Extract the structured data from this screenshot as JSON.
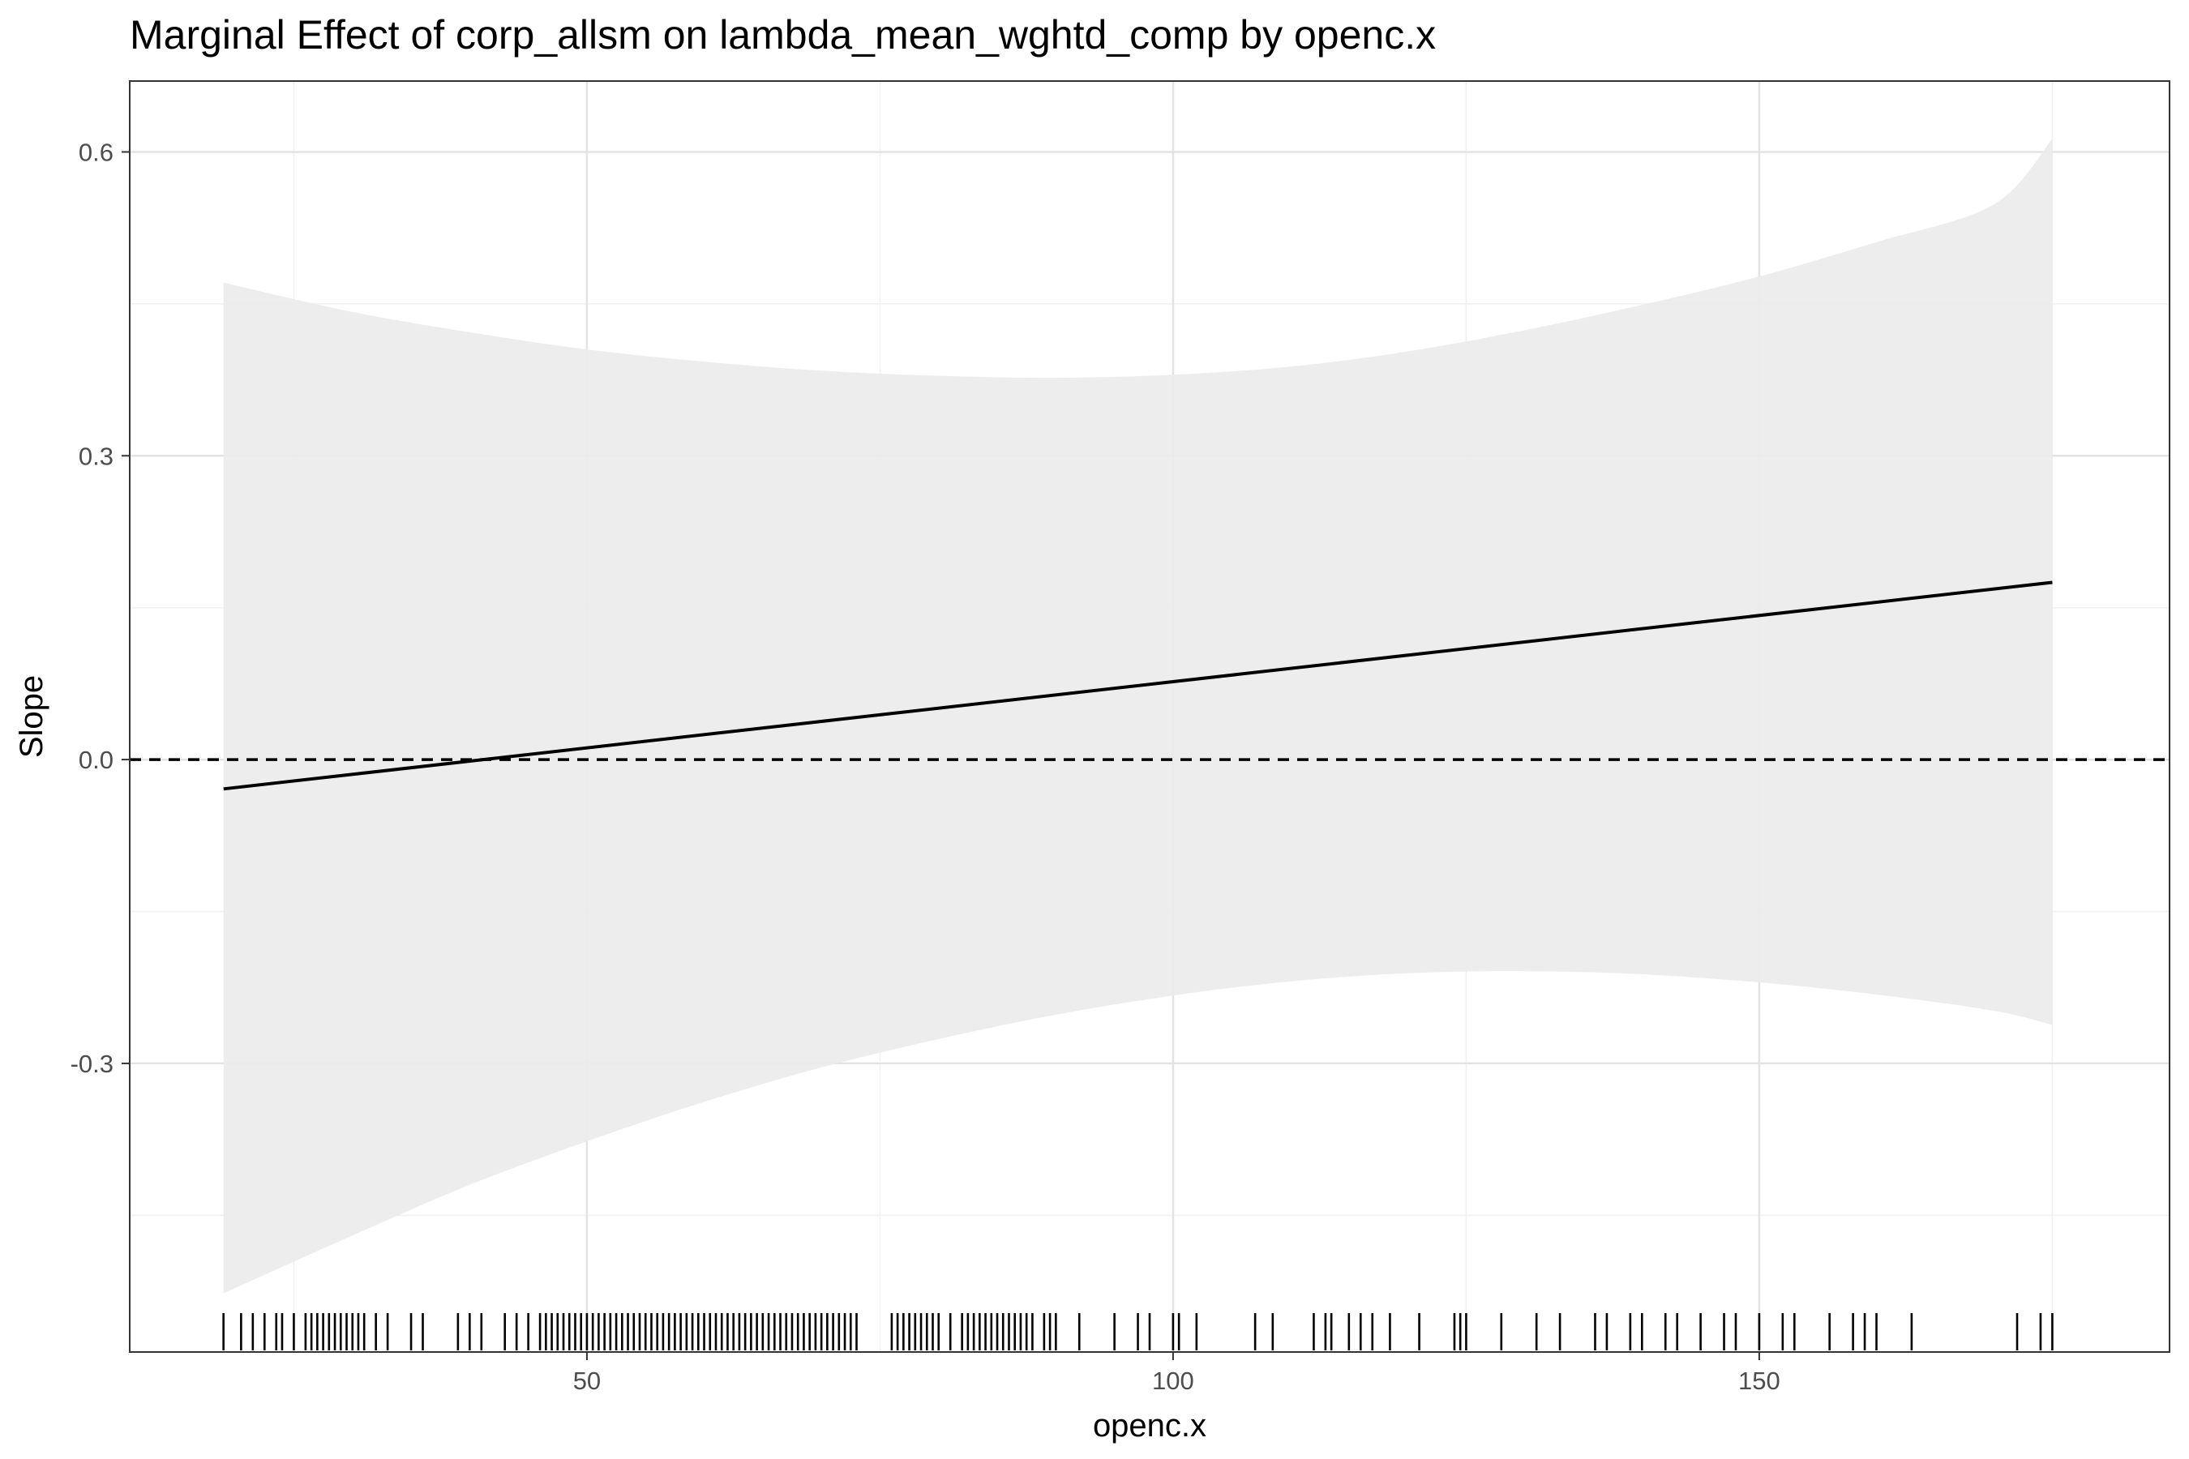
{
  "chart_data": {
    "type": "line",
    "title": "Marginal Effect of corp_allsm on lambda_mean_wghtd_comp by openc.x",
    "xlabel": "openc.x",
    "ylabel": "Slope",
    "xlim": [
      11,
      185
    ],
    "ylim": [
      -0.585,
      0.67
    ],
    "x_ticks": [
      50,
      100,
      150
    ],
    "x_tick_labels": [
      "50",
      "100",
      "150"
    ],
    "y_ticks": [
      -0.3,
      0.0,
      0.3,
      0.6
    ],
    "y_tick_labels": [
      "-0.3",
      "0.0",
      "0.3",
      "0.6"
    ],
    "x_minor": [
      25,
      75,
      125,
      175
    ],
    "y_minor": [
      -0.45,
      -0.15,
      0.15,
      0.45
    ],
    "grid": true,
    "reference_line": {
      "y": 0.0,
      "style": "dashed"
    },
    "series": [
      {
        "values_x": [
          19,
          175
        ],
        "values_y": [
          -0.029,
          0.175
        ]
      }
    ],
    "confidence_band": {
      "x": [
        19,
        30,
        40,
        50,
        60,
        70,
        80,
        90,
        100,
        110,
        120,
        130,
        140,
        150,
        160,
        170,
        175
      ],
      "lower": [
        -0.527,
        -0.47,
        -0.42,
        -0.377,
        -0.338,
        -0.304,
        -0.276,
        -0.252,
        -0.233,
        -0.219,
        -0.211,
        -0.209,
        -0.212,
        -0.22,
        -0.232,
        -0.248,
        -0.262
      ],
      "upper": [
        0.471,
        0.442,
        0.422,
        0.405,
        0.393,
        0.384,
        0.379,
        0.377,
        0.38,
        0.388,
        0.403,
        0.424,
        0.449,
        0.477,
        0.511,
        0.548,
        0.613
      ]
    },
    "rug_x": [
      19,
      20.5,
      21.5,
      22.5,
      23.5,
      24,
      25,
      26,
      26.5,
      27,
      27.5,
      28,
      28.5,
      29,
      29.5,
      30,
      30.5,
      31,
      32,
      33,
      35,
      36,
      39,
      40,
      41,
      43,
      44,
      45,
      46,
      46.5,
      47,
      47.5,
      48,
      48.5,
      49,
      49.5,
      50,
      50.5,
      51,
      51.5,
      52,
      52.5,
      53,
      53.5,
      54,
      54.5,
      55,
      55.5,
      56,
      56.5,
      57,
      57.5,
      58,
      58.5,
      59,
      59.5,
      60,
      60.5,
      61,
      61.5,
      62,
      62.5,
      63,
      63.5,
      64,
      64.5,
      65,
      65.5,
      66,
      66.5,
      67,
      67.5,
      68,
      68.5,
      69,
      69.5,
      70,
      70.5,
      71,
      71.5,
      72,
      72.5,
      73,
      76,
      76.5,
      77,
      77.5,
      78,
      78.5,
      79,
      79.5,
      80,
      81,
      82,
      82.5,
      83,
      83.5,
      84,
      84.5,
      85,
      85.5,
      86,
      86.5,
      87,
      87.5,
      88,
      89,
      89.5,
      90,
      92,
      95,
      97,
      98,
      100,
      100.5,
      102,
      107,
      108.5,
      112,
      113,
      113.5,
      115,
      116,
      117,
      118.5,
      121,
      124,
      124.5,
      125,
      128,
      131,
      133,
      136,
      137,
      139,
      140,
      142,
      143,
      145,
      147,
      148,
      150,
      152,
      153,
      156,
      158,
      159,
      160,
      163,
      172,
      174,
      175
    ]
  }
}
